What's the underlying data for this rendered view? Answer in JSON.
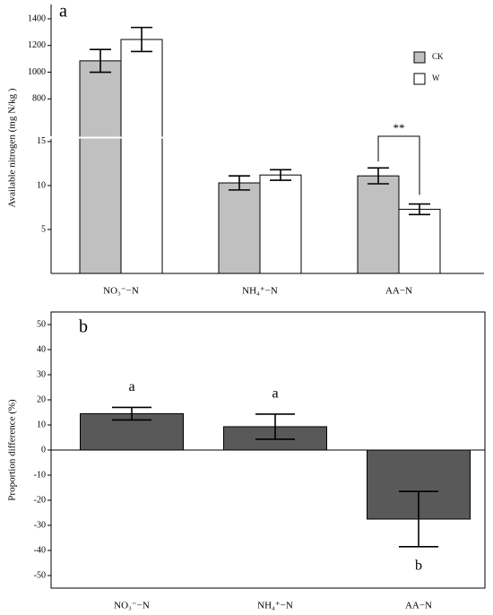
{
  "chart_data": [
    {
      "type": "bar",
      "panel_label": "a",
      "ylabel": "Available nitrogen (mg N/kg )",
      "categories": [
        "NO₃⁻−N",
        "NH₄⁺−N",
        "AA−N"
      ],
      "series": [
        {
          "name": "CK",
          "color": "#c0c0c0",
          "values": [
            1085,
            10.3,
            11.1
          ],
          "errors": [
            85,
            0.8,
            0.9
          ]
        },
        {
          "name": "W",
          "color": "#ffffff",
          "values": [
            1245,
            11.2,
            7.3
          ],
          "errors": [
            90,
            0.6,
            0.6
          ]
        }
      ],
      "y_segments": [
        {
          "ylim": [
            0,
            15.3
          ],
          "yticks": [
            5,
            10,
            15
          ]
        },
        {
          "ylim": [
            520,
            1440
          ],
          "yticks": [
            800,
            1000,
            1200,
            1400
          ]
        }
      ],
      "annotation": "**"
    },
    {
      "type": "bar",
      "panel_label": "b",
      "ylabel": "Proportion difference (%)",
      "categories": [
        "NO₃⁻−N",
        "NH₄⁺−N",
        "AA−N"
      ],
      "values": [
        14.5,
        9.3,
        -27.5
      ],
      "errors": [
        2.5,
        5,
        11
      ],
      "letters": [
        "a",
        "a",
        "b"
      ],
      "color": "#595959",
      "ylim": [
        -55,
        55
      ],
      "yticks": [
        50,
        40,
        30,
        20,
        10,
        0,
        -10,
        -20,
        -30,
        -40,
        -50
      ]
    }
  ]
}
